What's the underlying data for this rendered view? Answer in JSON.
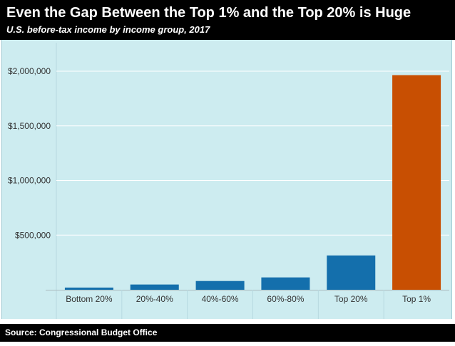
{
  "header": {
    "title": "Even the Gap Between the Top 1% and the Top 20% is Huge",
    "subtitle": "U.S. before-tax income by income group, 2017"
  },
  "footer": {
    "source": "Source: Congressional Budget Office"
  },
  "colors": {
    "background": "#ffffff",
    "header_background": "#000000",
    "plot_background": "#cdecf0",
    "gridline": "#ffffff",
    "bar_default": "#146fac",
    "bar_highlight": "#c84f02"
  },
  "chart_data": {
    "type": "bar",
    "title": "Even the Gap Between the Top 1% and the Top 20% is Huge",
    "subtitle": "U.S. before-tax income by income group, 2017",
    "xlabel": "",
    "ylabel": "",
    "categories": [
      "Bottom 20%",
      "20%-40%",
      "40%-60%",
      "60%-80%",
      "Top 20%",
      "Top 1%"
    ],
    "values": [
      20000,
      48000,
      80000,
      113000,
      314000,
      1964000
    ],
    "highlight_index": 5,
    "ylim": [
      0,
      2200000
    ],
    "yticks": [
      500000,
      1000000,
      1500000,
      2000000
    ],
    "ytick_labels": [
      "$500,000",
      "$1,000,000",
      "$1,500,000",
      "$2,000,000"
    ],
    "grid": true,
    "legend": "none"
  }
}
